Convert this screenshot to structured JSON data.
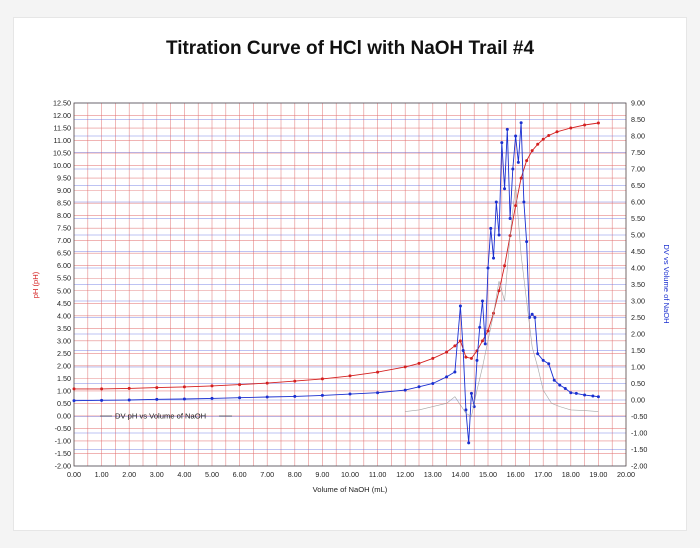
{
  "chart_data": {
    "type": "line",
    "title": "Titration Curve of HCl with NaOH Trail #4",
    "xlabel": "Volume of NaOH (mL)",
    "ylabel": "pH (pH)",
    "y2label": "DV vs Volume of NaOH",
    "xlim": [
      0,
      20
    ],
    "ylim": [
      -2,
      12.5
    ],
    "y2lim": [
      -2,
      9
    ],
    "grid": true,
    "x_ticks": [
      "0.00",
      "1.00",
      "2.00",
      "3.00",
      "4.00",
      "5.00",
      "6.00",
      "7.00",
      "8.00",
      "9.00",
      "10.00",
      "11.00",
      "12.00",
      "13.00",
      "14.00",
      "15.00",
      "16.00",
      "17.00",
      "18.00",
      "19.00",
      "20.00"
    ],
    "y_ticks": [
      "12.50",
      "12.00",
      "11.50",
      "11.00",
      "10.50",
      "10.00",
      "9.50",
      "9.00",
      "8.50",
      "8.00",
      "7.50",
      "7.00",
      "6.50",
      "6.00",
      "5.50",
      "5.00",
      "4.50",
      "4.00",
      "3.50",
      "3.00",
      "2.50",
      "2.00",
      "1.50",
      "1.00",
      "0.50",
      "0.00",
      "-0.50",
      "-1.00",
      "-1.50",
      "-2.00"
    ],
    "y2_ticks": [
      "9.00",
      "8.50",
      "8.00",
      "7.50",
      "7.00",
      "6.50",
      "6.00",
      "5.50",
      "5.00",
      "4.50",
      "4.00",
      "3.50",
      "3.00",
      "2.50",
      "2.00",
      "1.50",
      "1.00",
      "0.50",
      "0.00",
      "-0.50",
      "-1.00",
      "-1.50",
      "-2.00"
    ],
    "legend_entry": "DV pH vs Volume of NaOH",
    "series": [
      {
        "name": "pH",
        "axis": "left",
        "color": "#d42020",
        "x": [
          0,
          1,
          2,
          3,
          4,
          5,
          6,
          7,
          8,
          9,
          10,
          11,
          12,
          12.5,
          13,
          13.5,
          13.8,
          14,
          14.2,
          14.4,
          14.6,
          14.8,
          15,
          15.2,
          15.4,
          15.6,
          15.8,
          16,
          16.2,
          16.4,
          16.6,
          16.8,
          17,
          17.2,
          17.5,
          18,
          18.5,
          19
        ],
        "values": [
          1.08,
          1.08,
          1.1,
          1.13,
          1.16,
          1.2,
          1.25,
          1.31,
          1.39,
          1.48,
          1.6,
          1.75,
          1.96,
          2.1,
          2.3,
          2.55,
          2.8,
          3.0,
          2.35,
          2.3,
          2.6,
          3.0,
          3.4,
          4.1,
          5.0,
          6.0,
          7.2,
          8.4,
          9.5,
          10.2,
          10.6,
          10.85,
          11.05,
          11.2,
          11.35,
          11.5,
          11.62,
          11.7
        ]
      },
      {
        "name": "DV pH vs Volume of NaOH",
        "axis": "right",
        "color": "#1a2fd0",
        "x": [
          0,
          1,
          2,
          3,
          4,
          5,
          6,
          7,
          8,
          9,
          10,
          11,
          12,
          12.5,
          13,
          13.5,
          13.8,
          14,
          14.1,
          14.2,
          14.3,
          14.4,
          14.5,
          14.6,
          14.7,
          14.8,
          14.9,
          15,
          15.1,
          15.2,
          15.3,
          15.4,
          15.5,
          15.6,
          15.7,
          15.8,
          15.9,
          16,
          16.1,
          16.2,
          16.3,
          16.4,
          16.5,
          16.6,
          16.7,
          16.8,
          17,
          17.2,
          17.4,
          17.6,
          17.8,
          18,
          18.2,
          18.5,
          18.8,
          19
        ],
        "values": [
          -0.02,
          -0.01,
          0,
          0.02,
          0.03,
          0.05,
          0.07,
          0.09,
          0.11,
          0.14,
          0.18,
          0.22,
          0.3,
          0.4,
          0.5,
          0.7,
          0.85,
          2.85,
          1.5,
          -0.3,
          -1.3,
          0.2,
          -0.2,
          1.2,
          2.2,
          3.0,
          1.7,
          4.0,
          5.2,
          4.3,
          6.0,
          5.0,
          7.8,
          6.4,
          8.2,
          5.5,
          7.0,
          8.0,
          7.2,
          8.4,
          6.0,
          4.8,
          2.5,
          2.6,
          2.5,
          1.4,
          1.2,
          1.1,
          0.6,
          0.45,
          0.35,
          0.22,
          0.2,
          0.15,
          0.12,
          0.1
        ]
      },
      {
        "name": "",
        "axis": "right",
        "color": "#9a9a9a",
        "x": [
          12,
          12.5,
          13,
          13.5,
          13.8,
          14,
          14.2,
          14.4,
          14.6,
          14.8,
          15,
          15.2,
          15.4,
          15.6,
          15.8,
          16,
          16.2,
          16.4,
          16.6,
          16.8,
          17,
          17.3,
          17.6,
          18,
          18.5,
          19
        ],
        "values": [
          -0.35,
          -0.3,
          -0.2,
          -0.1,
          0.1,
          -0.15,
          -0.4,
          -0.5,
          0.3,
          1.0,
          1.8,
          2.6,
          3.6,
          3.0,
          5.0,
          6.5,
          4.4,
          3.0,
          1.6,
          1.0,
          0.3,
          -0.1,
          -0.2,
          -0.3,
          -0.32,
          -0.35
        ]
      }
    ]
  }
}
